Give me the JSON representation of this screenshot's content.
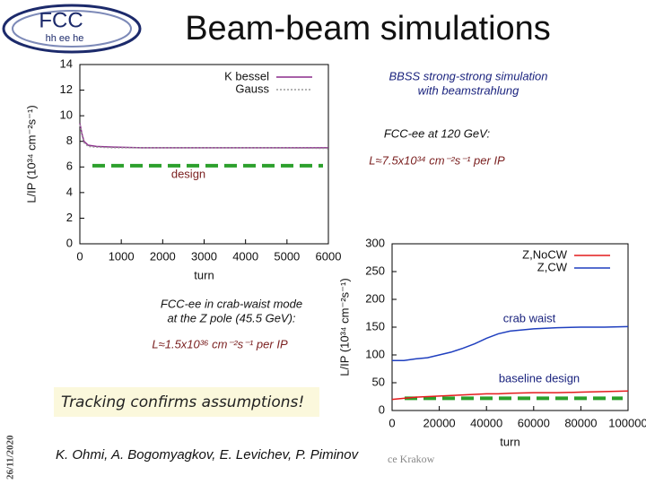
{
  "header": {
    "title": "Beam-beam simulations",
    "logo": [
      "FCC",
      "hh ee he"
    ]
  },
  "chart_data": [
    {
      "type": "line",
      "xlabel": "turn",
      "ylabel": "L/IP (10³⁴ cm⁻²s⁻¹)",
      "x": [
        0,
        50,
        100,
        200,
        400,
        800,
        1500,
        3000,
        4500,
        6000
      ],
      "xlim": [
        0,
        6000
      ],
      "xticks": [
        0,
        1000,
        2000,
        3000,
        4000,
        5000,
        6000
      ],
      "ylim": [
        0,
        14
      ],
      "yticks": [
        0,
        2,
        4,
        6,
        8,
        10,
        12,
        14
      ],
      "series": [
        {
          "name": "K bessel",
          "color": "#8b2c8b",
          "dash": false,
          "values": [
            9.4,
            8.6,
            8.0,
            7.7,
            7.6,
            7.55,
            7.5,
            7.5,
            7.5,
            7.5
          ]
        },
        {
          "name": "Gauss",
          "color": "#9a9a9a",
          "dash": true,
          "values": [
            9.3,
            8.5,
            7.9,
            7.6,
            7.55,
            7.5,
            7.5,
            7.5,
            7.5,
            7.45
          ]
        }
      ],
      "reference_line": 6.1,
      "reference_color": "#2ca02c",
      "reference_label": "design"
    },
    {
      "type": "line",
      "xlabel": "turn",
      "ylabel": "L/IP (10³⁴ cm⁻²s⁻¹)",
      "x": [
        0,
        5000,
        10000,
        15000,
        20000,
        25000,
        30000,
        35000,
        40000,
        45000,
        50000,
        60000,
        70000,
        80000,
        90000,
        100000
      ],
      "xlim": [
        0,
        100000
      ],
      "xticks": [
        0,
        20000,
        40000,
        60000,
        80000,
        100000
      ],
      "ylim": [
        0,
        300
      ],
      "yticks": [
        0,
        50,
        100,
        150,
        200,
        250,
        300
      ],
      "series": [
        {
          "name": "Z,NoCW",
          "color": "#e41a1c",
          "dash": false,
          "values": [
            20,
            22,
            24,
            25,
            26,
            27,
            28,
            29,
            30,
            30,
            31,
            32,
            32,
            33,
            34,
            35
          ]
        },
        {
          "name": "Z,CW",
          "color": "#1f3fbf",
          "dash": false,
          "values": [
            90,
            90,
            93,
            95,
            100,
            105,
            112,
            120,
            130,
            138,
            143,
            147,
            149,
            150,
            150,
            151
          ]
        }
      ],
      "reference_line": 22,
      "reference_color": "#2ca02c"
    }
  ],
  "annotations": {
    "bbss": [
      "BBSS strong-strong simulation",
      "with beamstrahlung"
    ],
    "fcc120": "FCC-ee at 120 GeV:",
    "lumi120": "L≈7.5x10³⁴ cm⁻²s⁻¹ per IP",
    "zpole": [
      "FCC-ee in crab-waist mode",
      "at the Z pole (45.5 GeV):"
    ],
    "lumiz": "L≈1.5x10³⁶ cm⁻²s⁻¹ per IP",
    "crab_waist": "crab waist",
    "baseline": "baseline design",
    "tracking": "Tracking confirms assumptions!"
  },
  "footer": {
    "authors": "K. Ohmi, A. Bogomyagkov, E. Levichev, P. Piminov",
    "place": "ce Krakow",
    "date": "26/11/2020"
  }
}
